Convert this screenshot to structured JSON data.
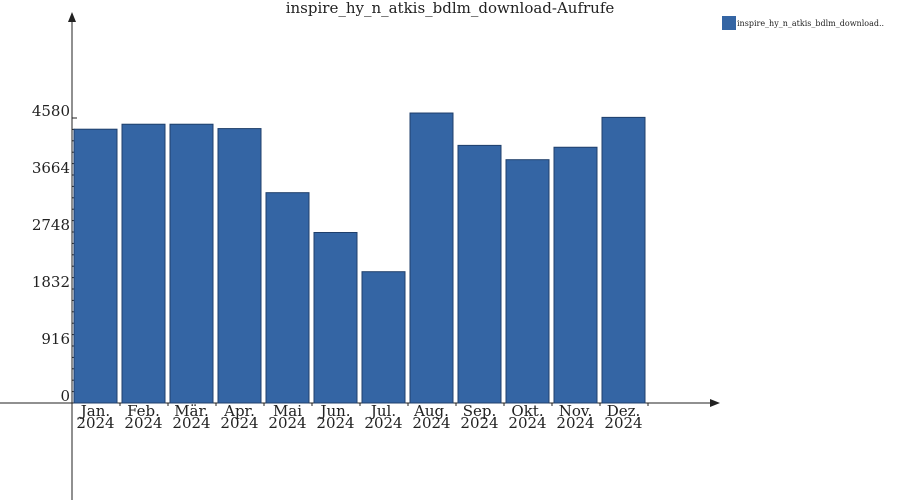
{
  "chart_data": {
    "type": "bar",
    "title": "inspire_hy_n_atkis_bdlm_download-Aufrufe",
    "categories": [
      [
        "Jan.",
        "2024"
      ],
      [
        "Feb.",
        "2024"
      ],
      [
        "Mär.",
        "2024"
      ],
      [
        "Apr.",
        "2024"
      ],
      [
        "Mai",
        "2024"
      ],
      [
        "Jun.",
        "2024"
      ],
      [
        "Jul.",
        "2024"
      ],
      [
        "Aug.",
        "2024"
      ],
      [
        "Sep.",
        "2024"
      ],
      [
        "Okt.",
        "2024"
      ],
      [
        "Nov.",
        "2024"
      ],
      [
        "Dez.",
        "2024"
      ]
    ],
    "series": [
      {
        "name": "inspire_hy_n_atkis_bdlm_download..",
        "color": "#3465a4",
        "values": [
          4400,
          4480,
          4480,
          4410,
          3380,
          2740,
          2110,
          4660,
          4140,
          3910,
          4110,
          4590
        ]
      }
    ],
    "yticks": [
      0,
      916,
      1832,
      2748,
      3664,
      4580
    ],
    "ylim": [
      0,
      4580
    ],
    "legend_position": "top-right"
  }
}
